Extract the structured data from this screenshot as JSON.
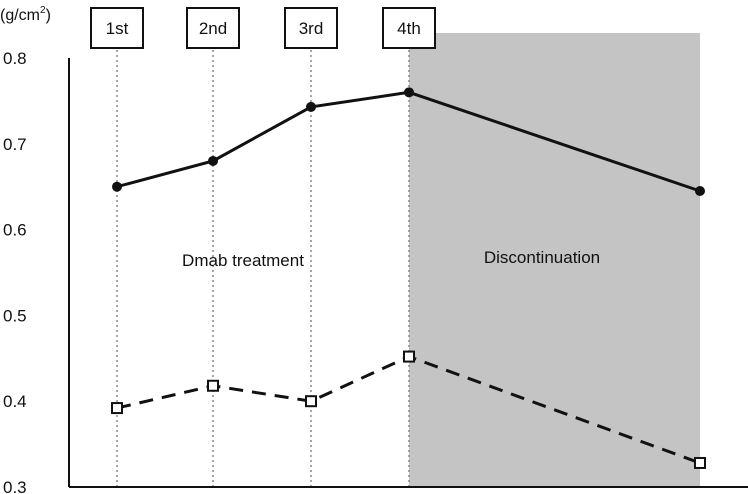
{
  "chart_data": {
    "type": "line",
    "y_unit": "(g/cm",
    "y_unit_superscript": "2",
    "y_unit_close": ")",
    "ylim": [
      0.3,
      0.8
    ],
    "yticks": [
      "0.8",
      "0.7",
      "0.6",
      "0.5",
      "0.4",
      "0.3"
    ],
    "ytick_values": [
      0.8,
      0.7,
      0.6,
      0.5,
      0.4,
      0.3
    ],
    "x": [
      1,
      2,
      3,
      4,
      7
    ],
    "xlim": [
      0.5,
      7.5
    ],
    "markers": [
      {
        "label": "1st",
        "x": 1
      },
      {
        "label": "2nd",
        "x": 2
      },
      {
        "label": "3rd",
        "x": 3
      },
      {
        "label": "4th",
        "x": 4
      }
    ],
    "regions": [
      {
        "label": "Dmab treatment",
        "x_start": 1,
        "x_end": 4,
        "shaded": false
      },
      {
        "label": "Discontinuation",
        "x_start": 4,
        "x_end": 7,
        "shaded": true
      }
    ],
    "series": [
      {
        "style": "solid",
        "marker": "filled-circle",
        "values": [
          0.65,
          0.68,
          0.743,
          0.76,
          0.645
        ]
      },
      {
        "style": "dashed",
        "marker": "open-square",
        "values": [
          0.392,
          0.418,
          0.4,
          0.452,
          0.328
        ]
      }
    ],
    "grid": false,
    "colors": {
      "line": "#111111",
      "shade": "#c4c4c4",
      "guide": "#888888"
    }
  }
}
